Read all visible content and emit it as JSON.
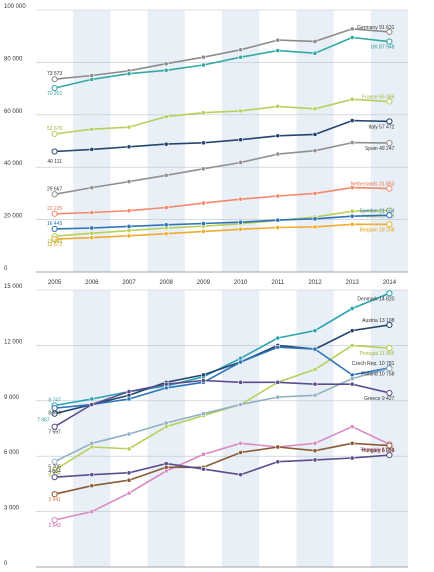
{
  "chart_data": [
    {
      "type": "line",
      "title": "",
      "xlabel": "",
      "ylabel": "",
      "x": [
        2005,
        2006,
        2007,
        2008,
        2009,
        2010,
        2011,
        2012,
        2013,
        2014
      ],
      "ylim": [
        0,
        100000
      ],
      "yticks": [
        0,
        20000,
        40000,
        60000,
        80000,
        100000
      ],
      "ytick_labels": [
        "0",
        "20 000",
        "40 000",
        "60 000",
        "80 000",
        "100 000"
      ],
      "xtick_labels": [
        "2005",
        "2006",
        "2007",
        "2008",
        "2009",
        "2010",
        "2011",
        "2012",
        "2013",
        "2014"
      ],
      "grid": true,
      "series": [
        {
          "name": "Germany",
          "color": "#8c8c8c",
          "label_color": "#333333",
          "first_label": "73 573",
          "last_label": "Germany 91 631",
          "label_side": "above",
          "values": [
            73573,
            75000,
            76800,
            79500,
            82000,
            84800,
            88500,
            88000,
            92800,
            91631
          ]
        },
        {
          "name": "UK",
          "color": "#33a8a4",
          "label_color": "#2a9a8e",
          "first_label": "70 201",
          "last_label": "UK 87 948",
          "label_side": "below",
          "values": [
            70201,
            73500,
            75700,
            77000,
            79000,
            82000,
            84500,
            83500,
            89500,
            87948
          ]
        },
        {
          "name": "France",
          "color": "#b7d05a",
          "label_color": "#9ab93a",
          "first_label": "52 676",
          "last_label": "France 65 086",
          "label_side": "above",
          "values": [
            52676,
            54500,
            55300,
            59300,
            60800,
            61500,
            63200,
            62300,
            65900,
            65086
          ]
        },
        {
          "name": "Italy",
          "color": "#24466e",
          "label_color": "#333333",
          "first_label": "",
          "last_label": "Italy 57 472",
          "label_side": "below",
          "values": [
            46000,
            46800,
            47800,
            48800,
            49300,
            50500,
            52000,
            52500,
            57800,
            57472
          ]
        },
        {
          "name": "Spain",
          "color": "#909090",
          "label_color": "#333333",
          "first_label": "",
          "last_label": "Spain 49 247",
          "label_side": "below",
          "values": [
            29667,
            32200,
            34500,
            36900,
            39400,
            41800,
            45000,
            46300,
            49400,
            49247
          ]
        },
        {
          "name": "Netherlands",
          "color": "#f2896a",
          "label_color": "#e5704a",
          "first_label": "22 225",
          "last_label": "Netherlands 31 853",
          "label_side": "above",
          "values": [
            22225,
            22700,
            23400,
            24600,
            26300,
            27800,
            29000,
            30000,
            32200,
            31853
          ]
        },
        {
          "name": "Poland",
          "color": "#b7d05a",
          "label_color": "#9ab93a",
          "first_label": "",
          "last_label": "Poland 23 498",
          "label_side": "below",
          "values": [
            13646,
            14800,
            15800,
            16800,
            17500,
            18400,
            19700,
            21000,
            23200,
            23498
          ]
        },
        {
          "name": "Sweden",
          "color": "#2d73b7",
          "label_color": "#2d73b7",
          "first_label": "16 445",
          "last_label": "Sweden 21 654",
          "label_side": "above",
          "values": [
            16445,
            16800,
            17400,
            18000,
            18500,
            19000,
            19800,
            20300,
            21300,
            21654
          ]
        },
        {
          "name": "Belgium",
          "color": "#f0ac2f",
          "label_color": "#e39a13",
          "first_label": "12 572",
          "last_label": "Belgium 18 208",
          "label_side": "below",
          "values": [
            12572,
            13100,
            13800,
            14600,
            15500,
            16300,
            17000,
            17200,
            18200,
            18208
          ]
        }
      ],
      "annotations": [
        {
          "text": "40 111",
          "x": 2005,
          "y": 40111,
          "color": "#333333",
          "side": "above"
        },
        {
          "text": "29 667",
          "x": 2005,
          "y": 29667,
          "color": "#333333",
          "side": "above"
        },
        {
          "text": "13 646",
          "x": 2005,
          "y": 13646,
          "color": "#9ab93a",
          "side": "below"
        }
      ]
    },
    {
      "type": "line",
      "title": "",
      "xlabel": "",
      "ylabel": "",
      "x": [
        2005,
        2006,
        2007,
        2008,
        2009,
        2010,
        2011,
        2012,
        2013,
        2014
      ],
      "ylim": [
        0,
        15000
      ],
      "yticks": [
        0,
        3000,
        6000,
        9000,
        12000,
        15000
      ],
      "ytick_labels": [
        "0",
        "3 000",
        "6 000",
        "9 000",
        "12 000",
        "15 000"
      ],
      "xtick_labels": [],
      "grid": true,
      "series": [
        {
          "name": "Denmark",
          "color": "#2aa3b0",
          "label_color": "#333333",
          "first_label": "",
          "last_label": "Denmark 14 820",
          "label_side": "below",
          "values": [
            8747,
            9100,
            9500,
            9800,
            10300,
            11300,
            12400,
            12800,
            14000,
            14820
          ]
        },
        {
          "name": "Austria",
          "color": "#24466e",
          "label_color": "#333333",
          "first_label": "",
          "last_label": "Austria 13 108",
          "label_side": "above",
          "values": [
            8300,
            8800,
            9300,
            10000,
            10400,
            11100,
            12000,
            11800,
            12800,
            13108
          ]
        },
        {
          "name": "Portugal",
          "color": "#b7d05a",
          "label_color": "#9ab93a",
          "first_label": "5 245",
          "last_label": "Portugal 11 855",
          "label_side": "below",
          "values": [
            5245,
            6500,
            6400,
            7600,
            8200,
            8800,
            10000,
            10700,
            12000,
            11855
          ]
        },
        {
          "name": "Czech Rep.",
          "color": "#2d73b7",
          "label_color": "#333333",
          "first_label": "",
          "last_label": "Czech Rep. 10 781",
          "label_side": "above",
          "values": [
            8600,
            8800,
            9100,
            9700,
            10000,
            11100,
            11900,
            11800,
            10400,
            10781
          ]
        },
        {
          "name": "Finland",
          "color": "#8fb1c4",
          "label_color": "#333333",
          "first_label": "5 705",
          "last_label": "Finland 10 758",
          "label_side": "below",
          "values": [
            5705,
            6700,
            7200,
            7800,
            8300,
            8800,
            9200,
            9300,
            10200,
            10758
          ]
        },
        {
          "name": "Greece",
          "color": "#5b4d8c",
          "label_color": "#333333",
          "first_label": "7 597",
          "last_label": "Greece 9 427",
          "label_side": "below",
          "values": [
            7597,
            8800,
            9500,
            9900,
            10100,
            10000,
            10000,
            9900,
            9900,
            9427
          ]
        },
        {
          "name": "Romania",
          "color": "#d98ac0",
          "label_color": "#c8559f",
          "first_label": "2 543",
          "last_label": "Romania 6 651",
          "label_side": "below",
          "values": [
            2543,
            3000,
            4000,
            5200,
            6100,
            6700,
            6500,
            6700,
            7600,
            6651
          ]
        },
        {
          "name": "Ireland",
          "color": "#8a5a34",
          "label_color": "#e5704a",
          "first_label": "3 941",
          "last_label": "Ireland 6 576",
          "label_side": "below",
          "values": [
            3941,
            4400,
            4700,
            5400,
            5400,
            6200,
            6500,
            6300,
            6700,
            6576
          ]
        },
        {
          "name": "Hungary",
          "color": "#5b4d8c",
          "label_color": "#333333",
          "first_label": "4 864",
          "last_label": "Hungary 6 059",
          "label_side": "above",
          "values": [
            4864,
            5000,
            5100,
            5600,
            5300,
            5000,
            5700,
            5800,
            5900,
            6059
          ]
        }
      ],
      "annotations": [
        {
          "text": "8 747",
          "x": 2005,
          "y": 8747,
          "color": "#2aa3b0",
          "side": "above"
        },
        {
          "text": "8 644",
          "x": 2005,
          "y": 8644,
          "color": "#333333",
          "side": "below"
        },
        {
          "text": "7 987",
          "x": 2005,
          "y": 7987,
          "color": "#2a9a8e",
          "side": "left"
        }
      ]
    }
  ]
}
